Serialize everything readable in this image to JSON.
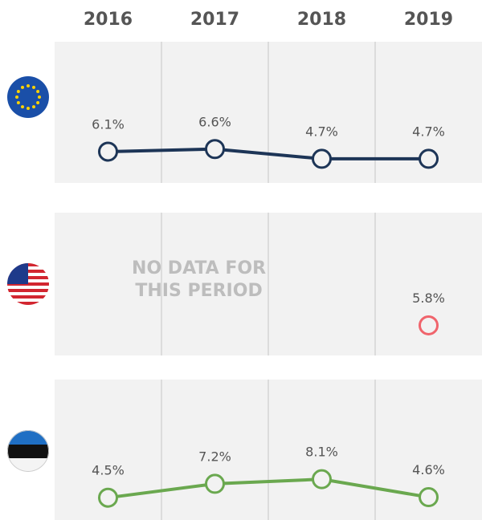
{
  "chart_data": {
    "type": "line",
    "categories": [
      "2016",
      "2017",
      "2018",
      "2019"
    ],
    "ylim": [
      0,
      27.5
    ],
    "series": [
      {
        "color": "#1d3557",
        "values": [
          6.1,
          6.6,
          4.7,
          4.7
        ],
        "value_labels": [
          "6.1%",
          "6.6%",
          "4.7%",
          "4.7%"
        ]
      },
      {
        "color": "#f0646c",
        "values": [
          null,
          null,
          null,
          5.8
        ],
        "value_labels": [
          null,
          null,
          null,
          "5.8%"
        ],
        "annotation": "NO DATA FOR THIS PERIOD"
      },
      {
        "color": "#6aa84f",
        "values": [
          4.5,
          7.2,
          8.1,
          4.6
        ],
        "value_labels": [
          "4.5%",
          "7.2%",
          "8.1%",
          "4.6%"
        ]
      }
    ]
  }
}
